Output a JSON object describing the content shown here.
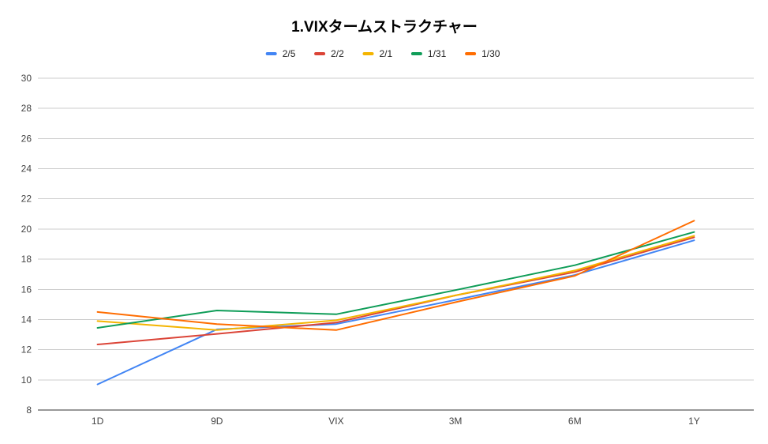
{
  "chart_data": {
    "type": "line",
    "title": "1.VIXタームストラクチャー",
    "xlabel": "",
    "ylabel": "",
    "categories": [
      "1D",
      "9D",
      "VIX",
      "3M",
      "6M",
      "1Y"
    ],
    "ylim": [
      8,
      30
    ],
    "yticks": [
      8,
      10,
      12,
      14,
      16,
      18,
      20,
      22,
      24,
      26,
      28,
      30
    ],
    "grid": true,
    "legend": "top-center",
    "series": [
      {
        "name": "2/5",
        "color": "#4285f4",
        "values": [
          9.7,
          13.35,
          13.7,
          15.3,
          16.95,
          19.25
        ]
      },
      {
        "name": "2/2",
        "color": "#db4437",
        "values": [
          12.35,
          13.05,
          13.8,
          15.6,
          17.15,
          19.45
        ]
      },
      {
        "name": "2/1",
        "color": "#f4b400",
        "values": [
          13.9,
          13.3,
          13.95,
          15.6,
          17.25,
          19.55
        ]
      },
      {
        "name": "1/31",
        "color": "#0f9d58",
        "values": [
          13.45,
          14.6,
          14.35,
          15.95,
          17.6,
          19.8
        ]
      },
      {
        "name": "1/30",
        "color": "#ff6d01",
        "values": [
          14.5,
          13.7,
          13.3,
          15.15,
          16.9,
          20.55
        ]
      }
    ]
  }
}
